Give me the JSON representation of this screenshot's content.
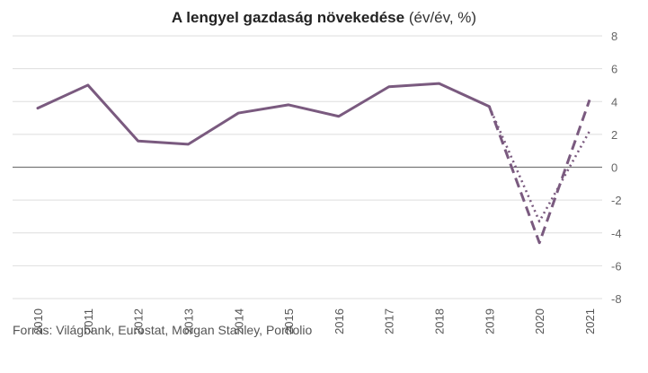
{
  "chart_data": {
    "type": "line",
    "title": {
      "bold": "A lengyel gazdaság növekedése",
      "unit": "(év/év, %)"
    },
    "xlabel": "",
    "ylabel": "",
    "ylim": [
      -8,
      8
    ],
    "yticks": [
      8,
      6,
      4,
      2,
      0,
      -2,
      -4,
      -6,
      -8
    ],
    "grid": true,
    "y_axis_side": "right",
    "categories": [
      "2010",
      "2011",
      "2012",
      "2013",
      "2014",
      "2015",
      "2016",
      "2017",
      "2018",
      "2019",
      "2020",
      "2021"
    ],
    "series": [
      {
        "style": "solid",
        "color": "#7a5a7f",
        "points": [
          {
            "x": "2010",
            "y": 3.6
          },
          {
            "x": "2011",
            "y": 5.0
          },
          {
            "x": "2012",
            "y": 1.6
          },
          {
            "x": "2013",
            "y": 1.4
          },
          {
            "x": "2014",
            "y": 3.3
          },
          {
            "x": "2015",
            "y": 3.8
          },
          {
            "x": "2016",
            "y": 3.1
          },
          {
            "x": "2017",
            "y": 4.9
          },
          {
            "x": "2018",
            "y": 5.1
          },
          {
            "x": "2019",
            "y": 3.7
          }
        ]
      },
      {
        "style": "dashed",
        "color": "#7a5a7f",
        "points": [
          {
            "x": "2019",
            "y": 3.7
          },
          {
            "x": "2020",
            "y": -4.6
          },
          {
            "x": "2021",
            "y": 4.1
          }
        ]
      },
      {
        "style": "dotted",
        "color": "#7a5a7f",
        "points": [
          {
            "x": "2019",
            "y": 3.7
          },
          {
            "x": "2020",
            "y": -3.3
          },
          {
            "x": "2021",
            "y": 2.2
          }
        ]
      }
    ],
    "source": "Forrás: Világbank, Eurostat, Morgan Stanley, Portfolio"
  }
}
